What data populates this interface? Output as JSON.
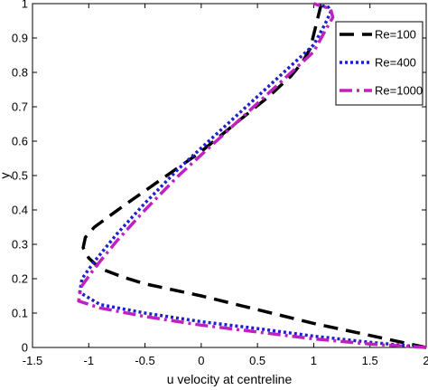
{
  "chart_data": {
    "type": "line",
    "title": "",
    "xlabel": "u velocity at centreline",
    "ylabel": "y",
    "xlim": [
      -1.5,
      2
    ],
    "ylim": [
      0,
      1
    ],
    "x_ticks": [
      -1.5,
      -1,
      -0.5,
      0,
      0.5,
      1,
      1.5,
      2
    ],
    "x_tick_labels": [
      "-1.5",
      "-1",
      "-0.5",
      "0",
      "0.5",
      "1",
      "1.5",
      "2"
    ],
    "y_ticks": [
      0,
      0.1,
      0.2,
      0.3,
      0.4,
      0.5,
      0.6,
      0.7,
      0.8,
      0.9,
      1
    ],
    "y_tick_labels": [
      "0",
      "0.1",
      "0.2",
      "0.3",
      "0.4",
      "0.5",
      "0.6",
      "0.7",
      "0.8",
      "0.9",
      "1"
    ],
    "grid": false,
    "legend_position": "top-right",
    "series": [
      {
        "name": "Re=100",
        "color": "#000000",
        "dash": "long-dash",
        "x": [
          2.0,
          1.5,
          1.0,
          0.5,
          0.0,
          -0.5,
          -0.7,
          -0.9,
          -1.0,
          -1.05,
          -1.03,
          -0.95,
          -0.7,
          -0.35,
          0.0,
          0.3,
          0.6,
          0.8,
          0.9,
          0.97,
          1.0,
          1.03,
          1.06,
          1.05,
          1.0
        ],
        "y": [
          0.0,
          0.035,
          0.07,
          0.11,
          0.15,
          0.185,
          0.205,
          0.23,
          0.26,
          0.29,
          0.32,
          0.35,
          0.41,
          0.49,
          0.57,
          0.65,
          0.73,
          0.79,
          0.83,
          0.87,
          0.91,
          0.95,
          0.99,
          1.0,
          1.0
        ]
      },
      {
        "name": "Re=400",
        "color": "#1f1fd0",
        "dash": "dotted",
        "x": [
          2.0,
          1.5,
          1.0,
          0.5,
          0.0,
          -0.5,
          -0.9,
          -1.08,
          -1.06,
          -0.95,
          -0.75,
          -0.5,
          -0.2,
          0.1,
          0.4,
          0.7,
          0.9,
          1.0,
          1.05,
          1.1,
          1.15,
          1.13,
          1.05,
          1.0
        ],
        "y": [
          0.0,
          0.015,
          0.033,
          0.055,
          0.075,
          0.1,
          0.125,
          0.16,
          0.2,
          0.25,
          0.33,
          0.42,
          0.52,
          0.61,
          0.7,
          0.79,
          0.85,
          0.88,
          0.91,
          0.94,
          0.975,
          0.99,
          0.995,
          1.0
        ]
      },
      {
        "name": "Re=1000",
        "color": "#c020c0",
        "dash": "dash",
        "x": [
          2.0,
          1.5,
          1.0,
          0.5,
          0.0,
          -0.5,
          -0.9,
          -1.09,
          -1.07,
          -0.95,
          -0.75,
          -0.5,
          -0.2,
          0.1,
          0.4,
          0.7,
          0.9,
          1.0,
          1.05,
          1.1,
          1.17,
          1.15,
          1.05,
          1.0
        ],
        "y": [
          0.0,
          0.01,
          0.025,
          0.045,
          0.065,
          0.09,
          0.115,
          0.135,
          0.175,
          0.23,
          0.31,
          0.4,
          0.5,
          0.59,
          0.68,
          0.77,
          0.83,
          0.86,
          0.89,
          0.92,
          0.96,
          0.985,
          0.995,
          1.0
        ]
      }
    ]
  }
}
